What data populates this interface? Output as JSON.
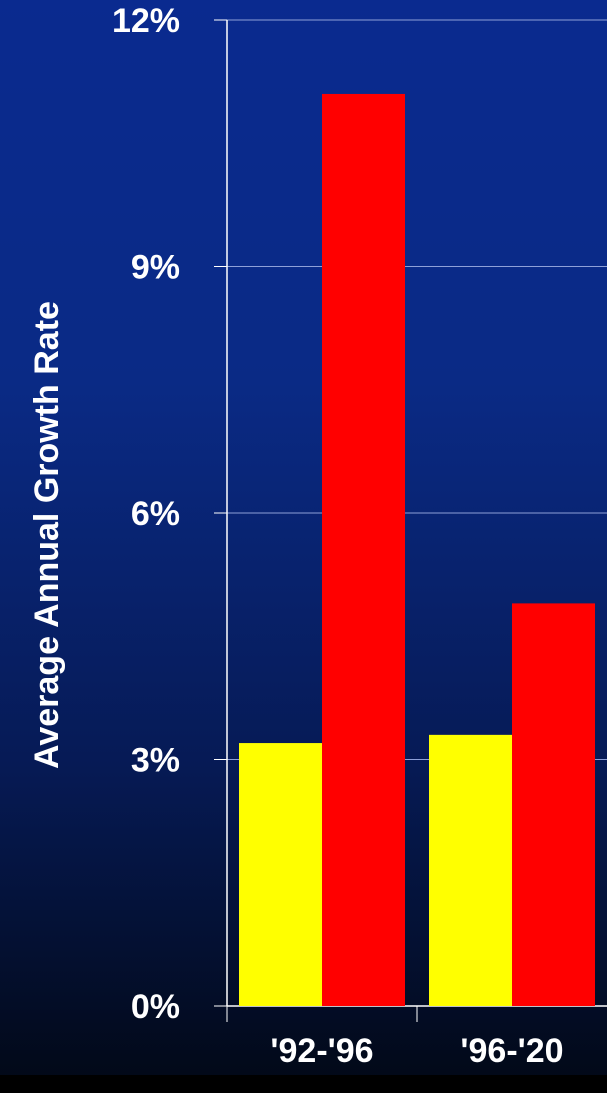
{
  "chart_data": {
    "type": "bar",
    "ylabel": "Average Annual Growth Rate",
    "xlabel": "",
    "categories": [
      "'92-'96",
      "'96-'20"
    ],
    "series": [
      {
        "color": "#ffff00",
        "values": [
          3.2,
          3.3
        ]
      },
      {
        "color": "#ff0000",
        "values": [
          11.1,
          4.9
        ]
      }
    ],
    "yticks": [
      "0%",
      "3%",
      "6%",
      "9%",
      "12%"
    ],
    "ylim": [
      0,
      12
    ],
    "grid": true,
    "legend": "none"
  }
}
